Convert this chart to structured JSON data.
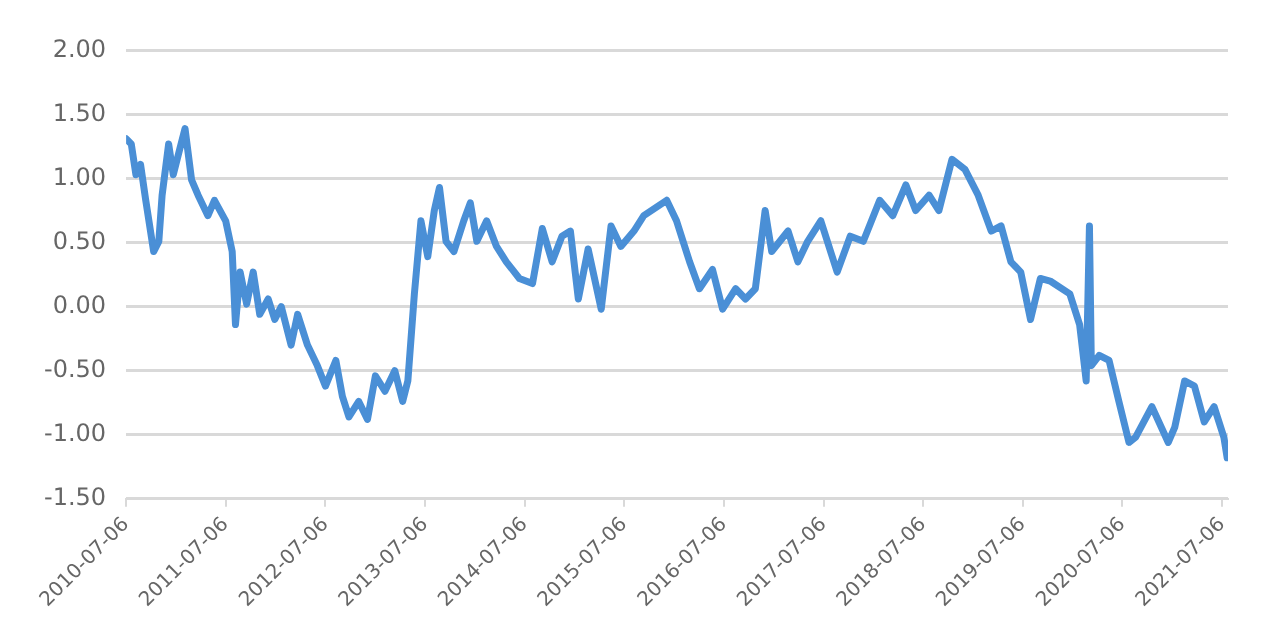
{
  "chart_data": {
    "type": "line",
    "x": [
      "2010-07-06",
      "2010-07-25",
      "2010-08-11",
      "2010-08-28",
      "2010-09-16",
      "2010-10-15",
      "2010-11-03",
      "2010-11-15",
      "2010-12-09",
      "2010-12-26",
      "2011-01-14",
      "2011-02-07",
      "2011-03-03",
      "2011-03-27",
      "2011-05-02",
      "2011-05-26",
      "2011-07-06",
      "2011-07-30",
      "2011-08-11",
      "2011-08-28",
      "2011-09-21",
      "2011-10-15",
      "2011-11-08",
      "2011-12-09",
      "2012-01-02",
      "2012-01-26",
      "2012-03-02",
      "2012-03-26",
      "2012-05-01",
      "2012-06-06",
      "2012-07-06",
      "2012-08-13",
      "2012-09-06",
      "2012-09-30",
      "2012-11-05",
      "2012-12-07",
      "2013-01-05",
      "2013-02-09",
      "2013-03-17",
      "2013-04-15",
      "2013-05-04",
      "2013-05-28",
      "2013-06-21",
      "2013-07-16",
      "2013-08-09",
      "2013-08-28",
      "2013-09-21",
      "2013-10-20",
      "2013-11-25",
      "2013-12-19",
      "2014-01-12",
      "2014-02-17",
      "2014-03-25",
      "2014-04-30",
      "2014-06-17",
      "2014-08-04",
      "2014-09-09",
      "2014-10-15",
      "2014-11-20",
      "2014-12-21",
      "2015-01-19",
      "2015-02-24",
      "2015-04-13",
      "2015-05-19",
      "2015-06-24",
      "2015-08-11",
      "2015-09-16",
      "2015-12-09",
      "2016-01-14",
      "2016-03-02",
      "2016-04-07",
      "2016-05-25",
      "2016-07-01",
      "2016-08-18",
      "2016-09-23",
      "2016-10-29",
      "2016-12-04",
      "2016-12-28",
      "2017-02-26",
      "2017-04-03",
      "2017-05-09",
      "2017-06-26",
      "2017-08-25",
      "2017-10-12",
      "2017-11-29",
      "2018-01-28",
      "2018-03-17",
      "2018-05-04",
      "2018-06-09",
      "2018-07-28",
      "2018-09-02",
      "2018-10-20",
      "2018-12-07",
      "2019-01-24",
      "2019-03-13",
      "2019-04-18",
      "2019-05-24",
      "2019-06-29",
      "2019-08-04",
      "2019-09-09",
      "2019-10-15",
      "2019-12-26",
      "2020-01-31",
      "2020-02-24",
      "2020-03-07",
      "2020-03-14",
      "2020-04-12",
      "2020-05-18",
      "2020-06-23",
      "2020-07-30",
      "2020-08-23",
      "2020-10-22",
      "2020-12-21",
      "2021-01-14",
      "2021-02-19",
      "2021-03-27",
      "2021-05-02",
      "2021-06-07",
      "2021-07-13",
      "2021-07-25"
    ],
    "series": [
      {
        "color": "#4a8fd6",
        "values": [
          1.31,
          1.27,
          1.03,
          1.11,
          0.83,
          0.43,
          0.51,
          0.87,
          1.27,
          1.03,
          1.19,
          1.39,
          0.99,
          0.87,
          0.71,
          0.83,
          0.67,
          0.43,
          -0.14,
          0.27,
          0.02,
          0.27,
          -0.06,
          0.06,
          -0.1,
          0.0,
          -0.3,
          -0.06,
          -0.3,
          -0.46,
          -0.62,
          -0.42,
          -0.7,
          -0.86,
          -0.74,
          -0.88,
          -0.54,
          -0.66,
          -0.5,
          -0.74,
          -0.58,
          0.1,
          0.67,
          0.39,
          0.75,
          0.93,
          0.51,
          0.43,
          0.67,
          0.81,
          0.51,
          0.67,
          0.47,
          0.35,
          0.22,
          0.18,
          0.61,
          0.35,
          0.55,
          0.59,
          0.06,
          0.45,
          -0.02,
          0.63,
          0.47,
          0.59,
          0.71,
          0.83,
          0.67,
          0.35,
          0.14,
          0.29,
          -0.02,
          0.14,
          0.06,
          0.14,
          0.75,
          0.43,
          0.59,
          0.35,
          0.51,
          0.67,
          0.27,
          0.55,
          0.51,
          0.83,
          0.71,
          0.95,
          0.75,
          0.87,
          0.75,
          1.15,
          1.07,
          0.87,
          0.59,
          0.63,
          0.35,
          0.27,
          -0.1,
          0.22,
          0.2,
          0.1,
          -0.14,
          -0.58,
          0.63,
          -0.46,
          -0.38,
          -0.42,
          -0.74,
          -1.06,
          -1.02,
          -0.78,
          -1.06,
          -0.94,
          -0.58,
          -0.62,
          -0.9,
          -0.78,
          -1.02,
          -1.18
        ]
      }
    ],
    "xlim": [
      "2010-07-06",
      "2021-07-28"
    ],
    "xticks": [
      "2010-07-06",
      "2011-07-06",
      "2012-07-06",
      "2013-07-06",
      "2014-07-06",
      "2015-07-06",
      "2016-07-06",
      "2017-07-06",
      "2018-07-06",
      "2019-07-06",
      "2020-07-06",
      "2021-07-06"
    ],
    "ylim": [
      -1.5,
      2
    ],
    "yticks": [
      {
        "value": -1.5,
        "label": "-1.50"
      },
      {
        "value": -1,
        "label": "-1.00"
      },
      {
        "value": -0.5,
        "label": "-0.50"
      },
      {
        "value": 0,
        "label": "0.00"
      },
      {
        "value": 0.5,
        "label": "0.50"
      },
      {
        "value": 1,
        "label": "1.00"
      },
      {
        "value": 1.5,
        "label": "1.50"
      },
      {
        "value": 2,
        "label": "2.00"
      }
    ],
    "grid": "y",
    "legend": false,
    "marker": "none",
    "line_style": "solid"
  }
}
